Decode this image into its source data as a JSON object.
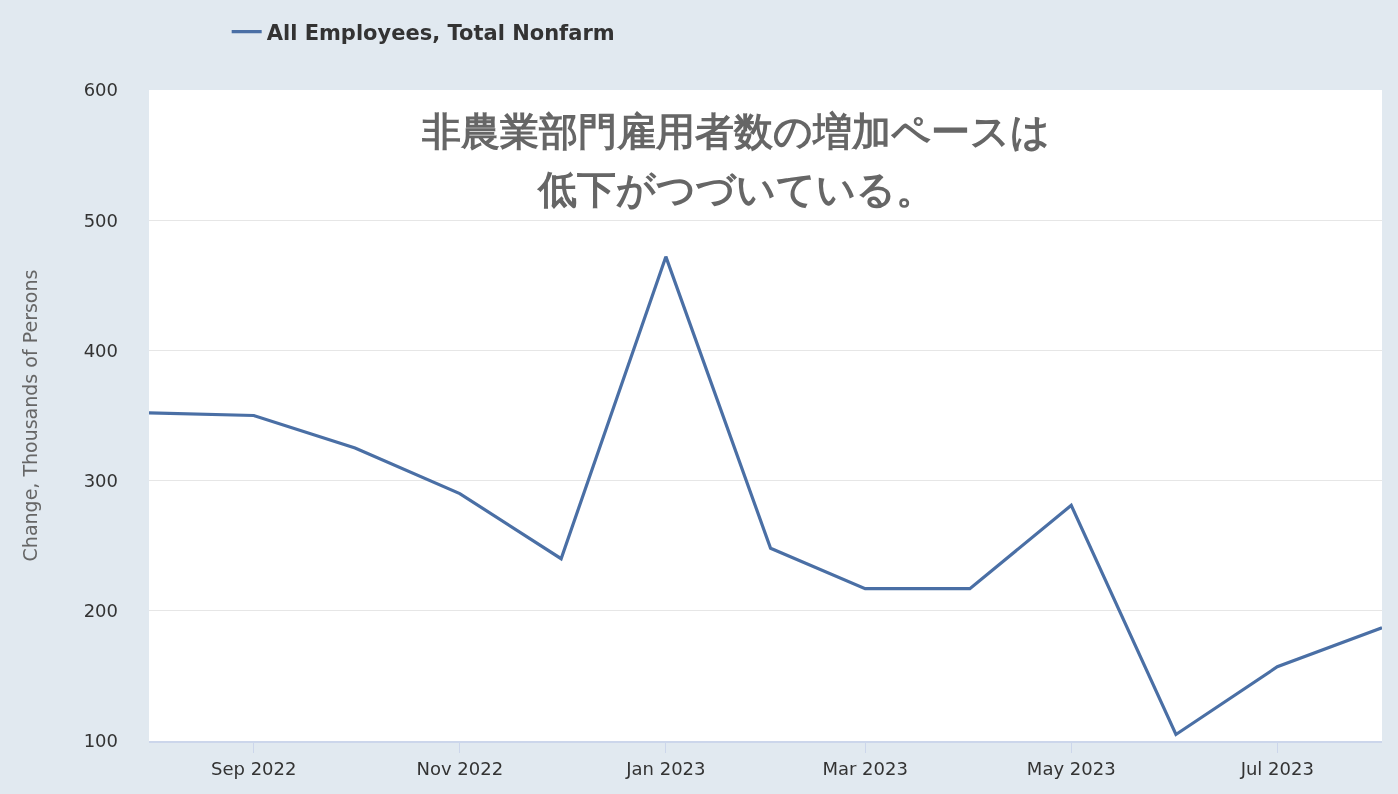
{
  "chart_data": {
    "type": "line",
    "title": "非農業部門雇用者数の増加ペースは",
    "subtitle": "低下がつづいている。",
    "ylabel": "Change, Thousands of Persons",
    "x": [
      "2022-08-01",
      "2022-09-01",
      "2022-10-01",
      "2022-11-01",
      "2022-12-01",
      "2023-01-01",
      "2023-02-01",
      "2023-03-01",
      "2023-04-01",
      "2023-05-01",
      "2023-06-01",
      "2023-07-01",
      "2023-08-01"
    ],
    "series": [
      {
        "name": "All Employees, Total Nonfarm",
        "color": "#4a6fa5",
        "values": [
          352,
          350,
          325,
          290,
          240,
          472,
          248,
          217,
          217,
          281,
          105,
          157,
          187
        ]
      }
    ],
    "xlim": [
      "2022-08-01",
      "2023-08-01"
    ],
    "xticks": [
      {
        "value": "2022-09-01",
        "label": "Sep 2022"
      },
      {
        "value": "2022-11-01",
        "label": "Nov 2022"
      },
      {
        "value": "2023-01-01",
        "label": "Jan 2023"
      },
      {
        "value": "2023-03-01",
        "label": "Mar 2023"
      },
      {
        "value": "2023-05-01",
        "label": "May 2023"
      },
      {
        "value": "2023-07-01",
        "label": "Jul 2023"
      }
    ],
    "ylim": [
      100,
      600
    ],
    "yticks": [
      100,
      200,
      300,
      400,
      500,
      600
    ],
    "grid": "y",
    "legend": "top left",
    "line_style": "solid"
  }
}
